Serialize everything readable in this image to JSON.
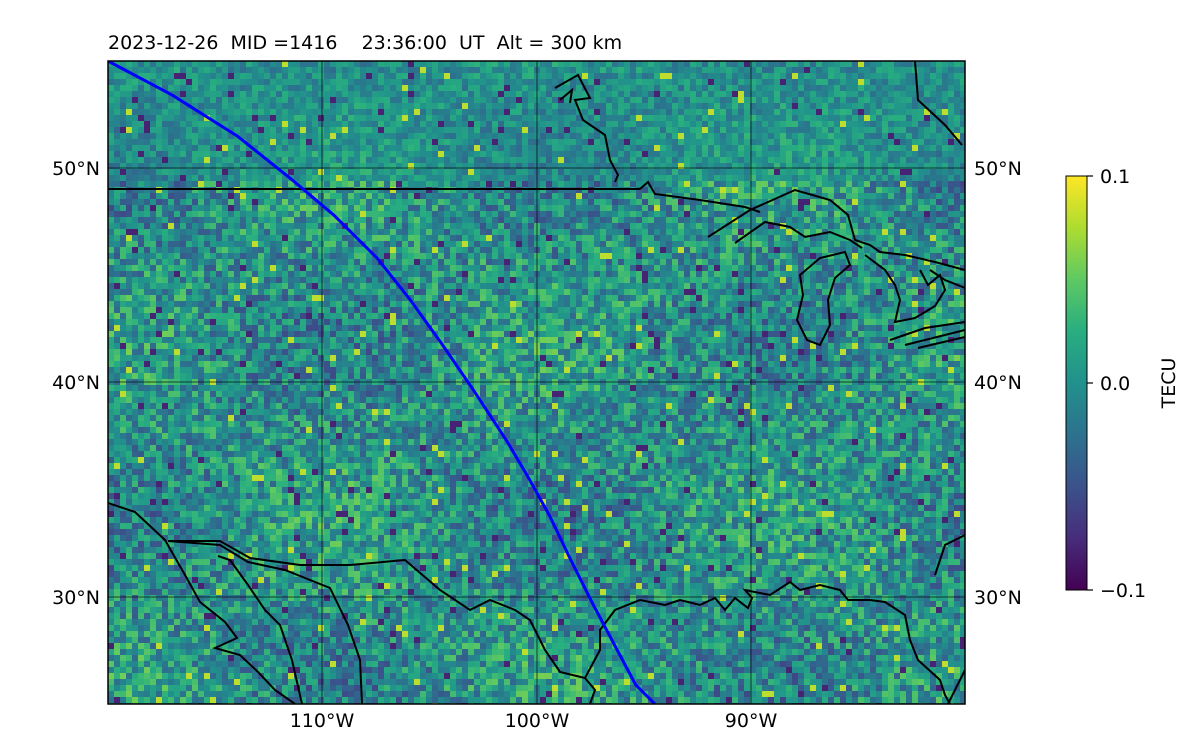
{
  "chart_data": {
    "type": "heatmap",
    "title": "2023-12-26  MID =1416    23:36:00  UT  Alt = 300 km",
    "title_parts": {
      "date": "2023-12-26",
      "mid": "MID =1416",
      "time": "23:36:00  UT",
      "alt": "Alt = 300 km"
    },
    "xlim": [
      -120,
      -80.2
    ],
    "ylim": [
      25,
      55
    ],
    "x_ticks": [
      {
        "value": -110,
        "label": "110°W"
      },
      {
        "value": -100,
        "label": "100°W"
      },
      {
        "value": -90,
        "label": "90°W"
      }
    ],
    "y_ticks": [
      {
        "value": 50,
        "label": "50°N"
      },
      {
        "value": 40,
        "label": "40°N"
      },
      {
        "value": 30,
        "label": "30°N"
      }
    ],
    "grid": true,
    "colormap": "viridis",
    "colorbar": {
      "label": "TECU",
      "vmin": -0.1,
      "vmax": 0.1,
      "ticks": [
        {
          "value": 0.1,
          "label": "0.1"
        },
        {
          "value": 0.0,
          "label": "0.0"
        },
        {
          "value": -0.1,
          "label": "−0.1"
        }
      ]
    },
    "satellite_track": {
      "color": "#0000ff",
      "lon": [
        -120,
        -117,
        -114,
        -111.5,
        -109.5,
        -107.5,
        -106,
        -104.5,
        -103,
        -101.5,
        -100.5,
        -99.5,
        -98.5,
        -97.5,
        -96.5,
        -95.5,
        -94.6
      ],
      "lat": [
        55,
        53.4,
        51.5,
        49.5,
        47.8,
        45.8,
        43.9,
        41.8,
        39.6,
        37.3,
        35.6,
        33.8,
        31.7,
        29.7,
        27.8,
        25.9,
        25
      ]
    },
    "color_legend_values": {
      "ocean_background": 0.0,
      "us_canada_border_lat": 49.0
    }
  }
}
